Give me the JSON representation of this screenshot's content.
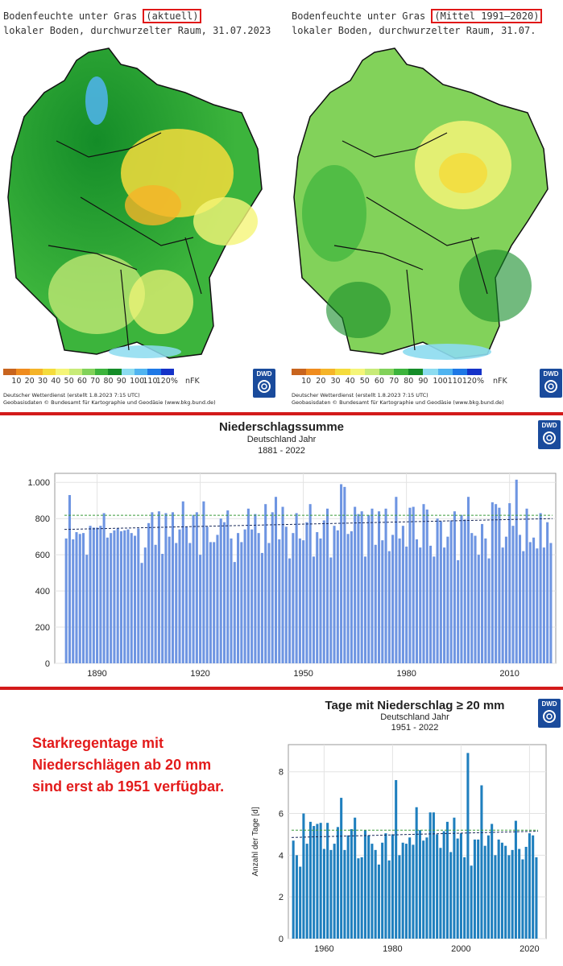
{
  "maps": [
    {
      "title_pre": "Bodenfeuchte unter Gras ",
      "title_hl": "(aktuell)",
      "subtitle": "lokaler Boden, durchwurzelter Raum, 31.07.2023"
    },
    {
      "title_pre": "Bodenfeuchte unter Gras ",
      "title_hl": "(Mittel 1991–2020)",
      "subtitle": "lokaler Boden, durchwurzelter Raum, 31.07."
    }
  ],
  "legend": {
    "labels": [
      "10",
      "20",
      "30",
      "40",
      "50",
      "60",
      "70",
      "80",
      "90",
      "100",
      "110",
      "120%"
    ],
    "unit": "nFK",
    "colors": [
      "#c8641e",
      "#f08c1e",
      "#f5b428",
      "#f5dc3c",
      "#f5f578",
      "#c8eb78",
      "#82d25a",
      "#3cb43c",
      "#148c28",
      "#8cdcf0",
      "#50b4f0",
      "#1e78e6",
      "#1432c8"
    ]
  },
  "footer": {
    "line1": "Deutscher Wetterdienst (erstellt 1.8.2023 7:15 UTC)",
    "line2": "Geobasisdaten © Bundesamt für Kartographie und Geodäsie (www.bkg.bund.de)"
  },
  "logo": "DWD",
  "note": {
    "lines": [
      "Starkregentage mit",
      "Niederschlägen ab 20 mm",
      "sind erst ab 1951 verfügbar."
    ]
  },
  "colors": {
    "bar1": "#6e95e2",
    "bar2": "#1f7fbe",
    "highlight": "#e01818"
  },
  "chart_data": [
    {
      "type": "bar",
      "title": "Niederschlagssumme",
      "subtitle1": "Deutschland Jahr",
      "subtitle2": "1881 - 2022",
      "xlabel": "",
      "ylabel": "",
      "x_start": 1881,
      "x_end": 2022,
      "ylim": [
        0,
        1050
      ],
      "yticks": [
        0,
        200,
        400,
        600,
        800,
        1000
      ],
      "ytick_labels": [
        "0",
        "200",
        "400",
        "600",
        "800",
        "1.000"
      ],
      "xticks": [
        1890,
        1920,
        1950,
        1980,
        2010
      ],
      "mean_line": 818,
      "trend_line": [
        740,
        800
      ],
      "values": [
        690,
        930,
        685,
        725,
        715,
        720,
        600,
        760,
        750,
        750,
        760,
        830,
        695,
        720,
        735,
        745,
        730,
        735,
        740,
        720,
        705,
        745,
        555,
        640,
        775,
        835,
        655,
        840,
        605,
        830,
        700,
        835,
        665,
        740,
        895,
        755,
        665,
        820,
        835,
        600,
        895,
        755,
        670,
        670,
        710,
        800,
        780,
        845,
        690,
        560,
        720,
        670,
        740,
        855,
        740,
        825,
        720,
        610,
        880,
        665,
        835,
        920,
        685,
        865,
        755,
        580,
        720,
        830,
        690,
        680,
        780,
        880,
        590,
        725,
        690,
        790,
        855,
        585,
        760,
        735,
        990,
        975,
        715,
        730,
        865,
        825,
        840,
        590,
        820,
        855,
        655,
        840,
        680,
        855,
        620,
        710,
        920,
        690,
        760,
        645,
        860,
        865,
        685,
        640,
        880,
        850,
        650,
        590,
        800,
        785,
        640,
        700,
        790,
        840,
        570,
        820,
        795,
        920,
        720,
        705,
        600,
        770,
        690,
        580,
        890,
        880,
        860,
        640,
        700,
        885,
        760,
        1015,
        710,
        620,
        855,
        670,
        695,
        635,
        830,
        640,
        780,
        665
      ]
    },
    {
      "type": "bar",
      "title": "Tage mit Niederschlag ≥ 20 mm",
      "subtitle1": "Deutschland Jahr",
      "subtitle2": "1951 - 2022",
      "xlabel": "",
      "ylabel": "Anzahl der Tage [d]",
      "x_start": 1951,
      "x_end": 2022,
      "ylim": [
        0,
        9.3
      ],
      "yticks": [
        0,
        2,
        4,
        6,
        8
      ],
      "ytick_labels": [
        "0",
        "2",
        "4",
        "6",
        "8"
      ],
      "xticks": [
        1960,
        1980,
        2000,
        2020
      ],
      "mean_line": 5.2,
      "trend_line": [
        4.85,
        5.15
      ],
      "values": [
        4.7,
        4.0,
        3.45,
        6.0,
        4.55,
        5.6,
        5.4,
        5.5,
        5.55,
        4.3,
        5.55,
        4.25,
        4.55,
        5.35,
        6.75,
        4.25,
        4.95,
        5.25,
        5.8,
        3.85,
        3.9,
        5.2,
        4.95,
        4.55,
        4.25,
        3.55,
        4.6,
        5.05,
        3.75,
        5.0,
        7.6,
        4.0,
        4.6,
        4.55,
        4.85,
        4.5,
        6.3,
        5.2,
        4.7,
        4.85,
        6.05,
        6.05,
        5.0,
        4.35,
        5.15,
        5.6,
        4.15,
        5.8,
        4.8,
        5.05,
        3.9,
        8.9,
        3.5,
        4.75,
        4.75,
        7.35,
        4.45,
        4.95,
        5.5,
        4.0,
        4.75,
        4.6,
        4.45,
        4.0,
        4.25,
        5.65,
        4.3,
        3.8,
        4.4,
        5.05,
        4.95,
        3.9
      ]
    }
  ]
}
